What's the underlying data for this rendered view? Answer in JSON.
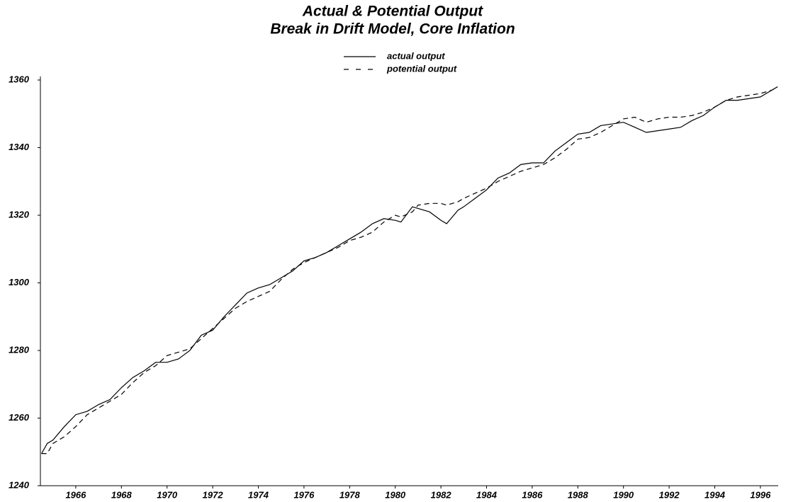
{
  "chart_data": {
    "type": "line",
    "title": "Actual & Potential Output",
    "subtitle": "Break in Drift Model, Core Inflation",
    "x": [
      1964.5,
      1964.75,
      1965,
      1965.5,
      1966,
      1966.5,
      1967,
      1967.5,
      1968,
      1968.5,
      1969,
      1969.5,
      1970,
      1970.5,
      1971,
      1971.5,
      1972,
      1972.5,
      1973,
      1973.5,
      1974,
      1974.5,
      1975,
      1975.5,
      1976,
      1976.5,
      1977,
      1977.5,
      1978,
      1978.5,
      1979,
      1979.5,
      1980,
      1980.25,
      1980.75,
      1981,
      1981.5,
      1982,
      1982.25,
      1982.75,
      1983,
      1983.5,
      1984,
      1984.5,
      1985,
      1985.5,
      1986,
      1986.5,
      1987,
      1987.5,
      1988,
      1988.5,
      1989,
      1989.5,
      1990,
      1990.5,
      1991,
      1991.5,
      1992,
      1992.5,
      1993,
      1993.5,
      1994,
      1994.5,
      1995,
      1995.5,
      1996,
      1996.5,
      1996.75
    ],
    "series": [
      {
        "name": "actual output",
        "color": "#000000",
        "style": "solid",
        "values": [
          1249.5,
          1252.5,
          1253.5,
          1257.5,
          1261,
          1262,
          1264,
          1265.5,
          1269,
          1272,
          1274,
          1276.5,
          1276.5,
          1277.5,
          1280,
          1284.5,
          1286,
          1290,
          1293.5,
          1297,
          1298.5,
          1299.5,
          1301.5,
          1303.5,
          1306.5,
          1307.5,
          1309,
          1311,
          1313,
          1315,
          1317.5,
          1319,
          1318.5,
          1318,
          1322.5,
          1322,
          1321,
          1318.5,
          1317.5,
          1321.5,
          1322.5,
          1325,
          1327.5,
          1331,
          1332.5,
          1335,
          1335.5,
          1335.5,
          1339,
          1341.5,
          1344,
          1344.5,
          1346.5,
          1347,
          1347.5,
          1346,
          1344.5,
          1345,
          1345.5,
          1346,
          1348,
          1349.5,
          1352,
          1354,
          1354,
          1354.5,
          1355,
          1357,
          1358
        ]
      },
      {
        "name": "potential output",
        "color": "#000000",
        "style": "dashed",
        "values": [
          1249.5,
          1249.5,
          1252.5,
          1254.5,
          1257.5,
          1261,
          1263,
          1265,
          1267,
          1270.5,
          1273.5,
          1275.5,
          1278.5,
          1279.5,
          1280.5,
          1283.5,
          1286.5,
          1289.5,
          1292.5,
          1294.5,
          1296,
          1297.5,
          1301,
          1304,
          1306,
          1307.5,
          1309,
          1310.5,
          1312.5,
          1313.5,
          1315,
          1318,
          1320,
          1319.5,
          1321,
          1323,
          1323.5,
          1323.5,
          1323,
          1324,
          1325,
          1326.5,
          1328,
          1330,
          1331.5,
          1333,
          1334,
          1335,
          1337,
          1339.5,
          1342.5,
          1343,
          1344.5,
          1346.5,
          1348.5,
          1349,
          1347.5,
          1348.5,
          1349,
          1349,
          1349.5,
          1350.5,
          1352,
          1354,
          1355,
          1355.5,
          1356,
          1357,
          1358
        ]
      }
    ],
    "xlim": [
      1964.45,
      1996.78
    ],
    "xticks": [
      1966,
      1968,
      1970,
      1972,
      1974,
      1976,
      1978,
      1980,
      1982,
      1984,
      1986,
      1988,
      1990,
      1992,
      1994,
      1996
    ],
    "ylim": [
      1240,
      1360
    ],
    "yticks": [
      1240,
      1260,
      1280,
      1300,
      1320,
      1340,
      1360
    ],
    "grid": false
  }
}
